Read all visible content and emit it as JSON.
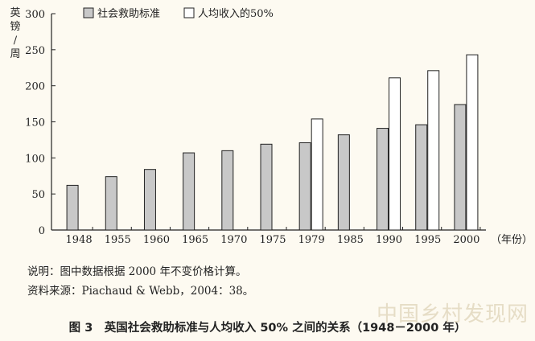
{
  "chart_data": {
    "type": "bar",
    "categories": [
      "1948",
      "1955",
      "1960",
      "1965",
      "1970",
      "1975",
      "1979",
      "1985",
      "1990",
      "1995",
      "2000"
    ],
    "series": [
      {
        "name": "社会救助标准",
        "values": [
          62,
          74,
          84,
          107,
          110,
          119,
          121,
          132,
          141,
          146,
          174
        ],
        "color": "#c8c8c8"
      },
      {
        "name": "人均收入的50%",
        "values": [
          null,
          null,
          null,
          null,
          null,
          null,
          154,
          null,
          211,
          221,
          243
        ],
        "color": "#ffffff"
      }
    ],
    "ylabel": "英镑/周",
    "xunit": "（年份）",
    "yticks": [
      0,
      50,
      100,
      150,
      200,
      250,
      300
    ],
    "ylim": [
      0,
      300
    ],
    "legend_position": "top"
  },
  "notes": {
    "line1": "说明：图中数据根据 2000 年不变价格计算。",
    "line2": "资料来源：Piachaud & Webb，2004：38。"
  },
  "caption": "图 3　英国社会救助标准与人均收入 50% 之间的关系（1948－2000 年）",
  "watermark": "中国乡村发现网"
}
